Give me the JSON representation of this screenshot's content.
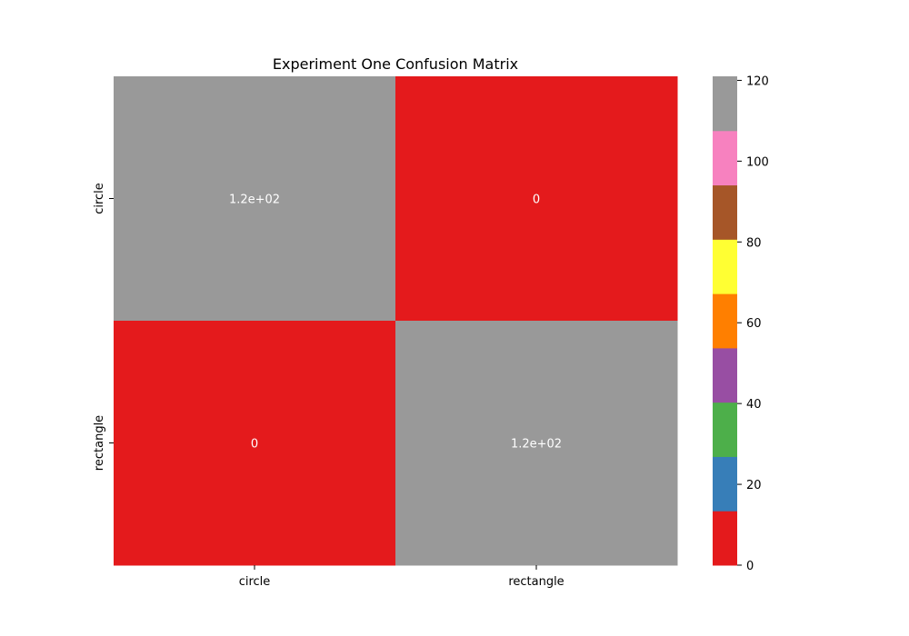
{
  "chart_data": {
    "type": "heatmap",
    "title": "Experiment One Confusion Matrix",
    "xlabel": "",
    "ylabel": "",
    "x_categories": [
      "circle",
      "rectangle"
    ],
    "y_categories": [
      "circle",
      "rectangle"
    ],
    "values": [
      [
        120,
        0
      ],
      [
        0,
        120
      ]
    ],
    "annotations": [
      [
        "1.2e+02",
        "0"
      ],
      [
        "0",
        "1.2e+02"
      ]
    ],
    "colorbar": {
      "colormap": "Set1",
      "range": [
        0,
        121
      ],
      "ticks": [
        0,
        20,
        40,
        60,
        80,
        100,
        120
      ],
      "tick_labels": [
        "0",
        "20",
        "40",
        "60",
        "80",
        "100",
        "120"
      ],
      "colors": [
        "#e41a1c",
        "#377eb8",
        "#4daf4a",
        "#984ea3",
        "#ff7f00",
        "#ffff33",
        "#a65628",
        "#f781bf",
        "#999999"
      ]
    }
  }
}
